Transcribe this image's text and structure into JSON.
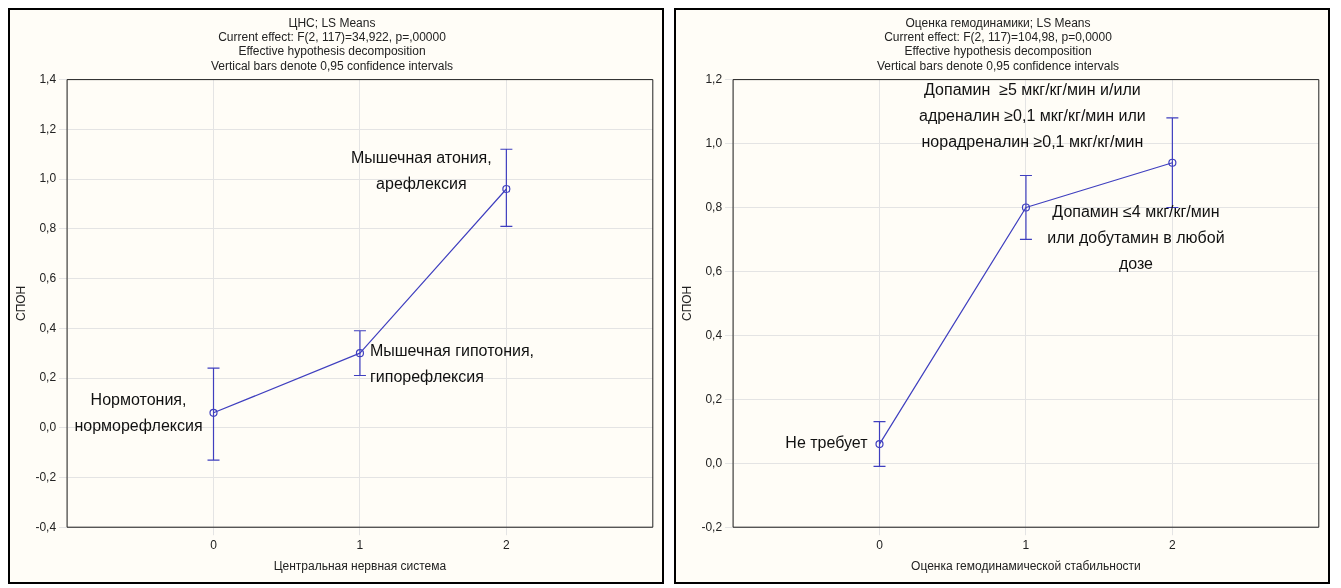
{
  "chart_data": [
    {
      "type": "line",
      "title": "ЦНС; LS Means",
      "subtitle": "Current effect: F(2, 117)=34,922, p=,00000\nEffective hypothesis decomposition\nVertical bars denote 0,95 confidence intervals",
      "xlabel": "Центральная нервная система",
      "ylabel": "СПОН",
      "x": [
        0,
        1,
        2
      ],
      "series": [
        {
          "color": "#3f3fbf",
          "values": [
            0.06,
            0.3,
            0.96
          ],
          "errors": [
            [
              -0.13,
              0.24
            ],
            [
              0.21,
              0.39
            ],
            [
              0.81,
              1.12
            ]
          ]
        }
      ],
      "xlim": [
        -1,
        3
      ],
      "xticks": [
        0,
        1,
        2
      ],
      "ylim": [
        -0.4,
        1.4
      ],
      "yticks": [
        {
          "value": -0.4,
          "label": "-0,4"
        },
        {
          "value": -0.2,
          "label": "-0,2"
        },
        {
          "value": 0,
          "label": "0,0"
        },
        {
          "value": 0.2,
          "label": "0,2"
        },
        {
          "value": 0.4,
          "label": "0,4"
        },
        {
          "value": 0.6,
          "label": "0,6"
        },
        {
          "value": 0.8,
          "label": "0,8"
        },
        {
          "value": 1.0,
          "label": "1,0"
        },
        {
          "value": 1.2,
          "label": "1,2"
        },
        {
          "value": 1.4,
          "label": "1,4"
        }
      ],
      "grid": true,
      "marker": "circle",
      "line_style": "solid",
      "annotations": [
        {
          "text": "Нормотония,\nнорморефлексия",
          "x": 0,
          "y": 0.06
        },
        {
          "text": "Мышечная гипотония,\nгипорефлексия",
          "x": 1,
          "y": 0.3
        },
        {
          "text": "Мышечная атония,\nарефлексия",
          "x": 2,
          "y": 0.96
        }
      ]
    },
    {
      "type": "line",
      "title": "Оценка гемодинамики; LS Means",
      "subtitle": "Current effect: F(2, 117)=104,98, p=0,0000\nEffective hypothesis decomposition\nVertical bars denote 0,95 confidence intervals",
      "xlabel": "Оценка гемодинамической стабильности",
      "ylabel": "СПОН",
      "x": [
        0,
        1,
        2
      ],
      "series": [
        {
          "color": "#3f3fbf",
          "values": [
            0.06,
            0.8,
            0.94
          ],
          "errors": [
            [
              -0.01,
              0.13
            ],
            [
              0.7,
              0.9
            ],
            [
              0.8,
              1.08
            ]
          ]
        }
      ],
      "xlim": [
        -1,
        3
      ],
      "xticks": [
        0,
        1,
        2
      ],
      "ylim": [
        -0.2,
        1.2
      ],
      "yticks": [
        {
          "value": -0.2,
          "label": "-0,2"
        },
        {
          "value": 0,
          "label": "0,0"
        },
        {
          "value": 0.2,
          "label": "0,2"
        },
        {
          "value": 0.4,
          "label": "0,4"
        },
        {
          "value": 0.6,
          "label": "0,6"
        },
        {
          "value": 0.8,
          "label": "0,8"
        },
        {
          "value": 1.0,
          "label": "1,0"
        },
        {
          "value": 1.2,
          "label": "1,2"
        }
      ],
      "grid": true,
      "marker": "circle",
      "line_style": "solid",
      "annotations": [
        {
          "text": "Не требует",
          "x": 0,
          "y": 0.06
        },
        {
          "text": "Допамин ≤4 мкг/кг/мин\nили добутамин в любой\nдозе",
          "x": 1,
          "y": 0.8
        },
        {
          "text": "Допамин  ≥5 мкг/кг/мин и/или\nадреналин ≥0,1 мкг/кг/мин или\nнорадреналин ≥0,1 мкг/кг/мин",
          "x": 2,
          "y": 0.94
        }
      ]
    }
  ]
}
